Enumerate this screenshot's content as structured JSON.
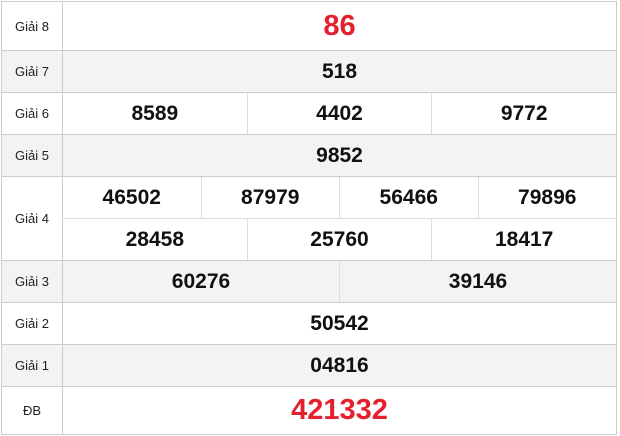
{
  "prizes": [
    {
      "label": "Giải 8",
      "rows": [
        [
          "86"
        ]
      ],
      "highlight": true
    },
    {
      "label": "Giải 7",
      "rows": [
        [
          "518"
        ]
      ]
    },
    {
      "label": "Giải 6",
      "rows": [
        [
          "8589",
          "4402",
          "9772"
        ]
      ]
    },
    {
      "label": "Giải 5",
      "rows": [
        [
          "9852"
        ]
      ]
    },
    {
      "label": "Giải 4",
      "rows": [
        [
          "46502",
          "87979",
          "56466",
          "79896"
        ],
        [
          "28458",
          "25760",
          "18417"
        ]
      ]
    },
    {
      "label": "Giải 3",
      "rows": [
        [
          "60276",
          "39146"
        ]
      ]
    },
    {
      "label": "Giải 2",
      "rows": [
        [
          "50542"
        ]
      ]
    },
    {
      "label": "Giải 1",
      "rows": [
        [
          "04816"
        ]
      ]
    },
    {
      "label": "ĐB",
      "rows": [
        [
          "421332"
        ]
      ],
      "highlight": true
    }
  ],
  "colors": {
    "highlight": "#e5202e",
    "alt_row": "#f3f3f3",
    "border": "#cccccc"
  }
}
